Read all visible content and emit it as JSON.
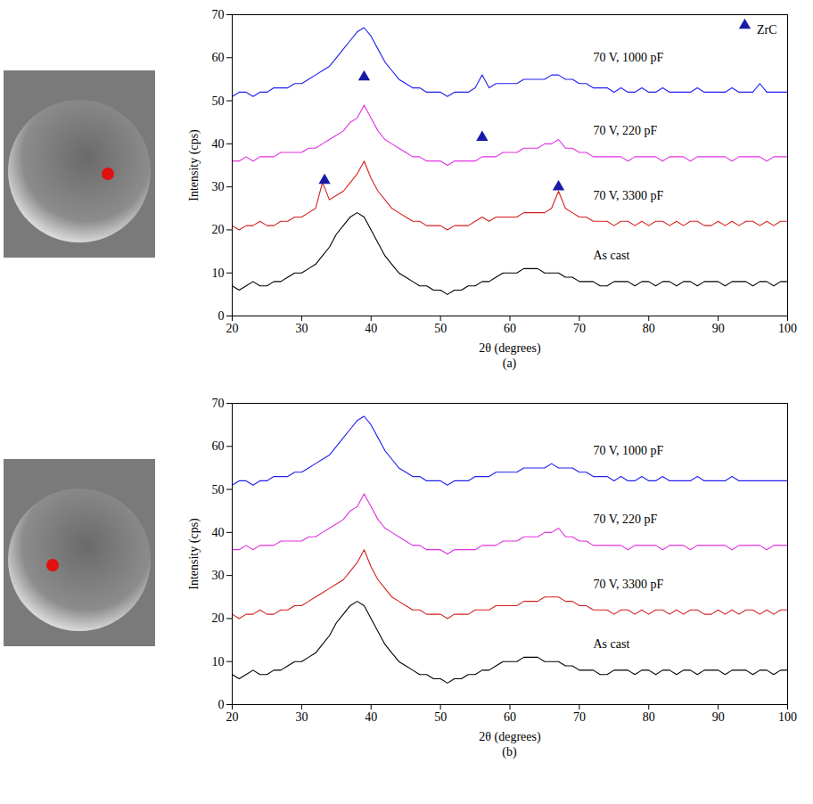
{
  "chart_data": [
    {
      "type": "line",
      "title": "(a)",
      "x_label": "2θ (degrees)",
      "y_label": "Intensity (cps)",
      "xlim": [
        20,
        100
      ],
      "ylim": [
        0,
        70
      ],
      "xticks": [
        20,
        30,
        40,
        50,
        60,
        70,
        80,
        90,
        100
      ],
      "yticks": [
        0,
        10,
        20,
        30,
        40,
        50,
        60,
        70
      ],
      "grid": false,
      "legend": "upper right",
      "x": [
        20,
        21,
        22,
        23,
        24,
        25,
        26,
        27,
        28,
        29,
        30,
        31,
        32,
        33,
        34,
        35,
        36,
        37,
        38,
        39,
        40,
        41,
        42,
        43,
        44,
        45,
        46,
        47,
        48,
        49,
        50,
        51,
        52,
        53,
        54,
        55,
        56,
        57,
        58,
        59,
        60,
        61,
        62,
        63,
        64,
        65,
        66,
        67,
        68,
        69,
        70,
        71,
        72,
        73,
        74,
        75,
        76,
        77,
        78,
        79,
        80,
        81,
        82,
        83,
        84,
        85,
        86,
        87,
        88,
        89,
        90,
        91,
        92,
        93,
        94,
        95,
        96,
        97,
        98,
        99,
        100
      ],
      "series": [
        {
          "name": "70 V, 1000 pF",
          "color": "#2020ee",
          "values": [
            51,
            52,
            52,
            51,
            52,
            52,
            53,
            53,
            53,
            54,
            54,
            55,
            56,
            57,
            58,
            60,
            62,
            64,
            66,
            67,
            65,
            62,
            59,
            57,
            55,
            54,
            53,
            53,
            52,
            52,
            52,
            51,
            52,
            52,
            52,
            53,
            56,
            53,
            54,
            54,
            54,
            54,
            55,
            55,
            55,
            55,
            56,
            56,
            55,
            55,
            54,
            54,
            53,
            53,
            53,
            52,
            53,
            52,
            52,
            53,
            52,
            52,
            53,
            52,
            52,
            52,
            52,
            53,
            52,
            52,
            52,
            52,
            53,
            52,
            52,
            52,
            54,
            52,
            52,
            52,
            52
          ]
        },
        {
          "name": "70 V, 220 pF",
          "color": "#e030e0",
          "values": [
            36,
            36,
            37,
            36,
            37,
            37,
            37,
            38,
            38,
            38,
            38,
            39,
            39,
            40,
            41,
            42,
            43,
            45,
            46,
            49,
            46,
            43,
            41,
            40,
            39,
            38,
            37,
            37,
            36,
            36,
            36,
            35,
            36,
            36,
            36,
            36,
            37,
            37,
            37,
            38,
            38,
            38,
            39,
            39,
            39,
            40,
            40,
            41,
            39,
            39,
            38,
            38,
            37,
            37,
            37,
            37,
            37,
            36,
            37,
            37,
            37,
            37,
            36,
            37,
            37,
            37,
            36,
            37,
            37,
            37,
            37,
            37,
            36,
            37,
            37,
            37,
            37,
            36,
            37,
            37,
            37
          ]
        },
        {
          "name": "70 V, 3300 pF",
          "color": "#d42020",
          "values": [
            21,
            20,
            21,
            21,
            22,
            21,
            21,
            22,
            22,
            23,
            23,
            24,
            25,
            31,
            27,
            28,
            29,
            31,
            33,
            36,
            32,
            29,
            27,
            25,
            24,
            23,
            22,
            22,
            21,
            21,
            21,
            20,
            21,
            21,
            21,
            22,
            23,
            22,
            23,
            23,
            23,
            23,
            24,
            24,
            24,
            24,
            25,
            29,
            25,
            24,
            23,
            23,
            22,
            22,
            22,
            21,
            22,
            22,
            21,
            22,
            21,
            22,
            22,
            21,
            22,
            21,
            22,
            22,
            21,
            21,
            22,
            21,
            22,
            21,
            22,
            22,
            21,
            22,
            21,
            22,
            22
          ]
        },
        {
          "name": "As cast",
          "color": "#000000",
          "values": [
            7,
            6,
            7,
            8,
            7,
            7,
            8,
            8,
            9,
            10,
            10,
            11,
            12,
            14,
            16,
            19,
            21,
            23,
            24,
            23,
            20,
            17,
            14,
            12,
            10,
            9,
            8,
            7,
            7,
            6,
            6,
            5,
            6,
            6,
            7,
            7,
            8,
            8,
            9,
            10,
            10,
            10,
            11,
            11,
            11,
            10,
            10,
            10,
            9,
            9,
            8,
            8,
            8,
            7,
            7,
            8,
            8,
            8,
            7,
            8,
            8,
            7,
            8,
            8,
            7,
            8,
            8,
            7,
            8,
            8,
            8,
            7,
            8,
            8,
            8,
            7,
            8,
            8,
            7,
            8,
            8
          ]
        }
      ],
      "markers": {
        "name": "ZrC",
        "color": "#1a1aa8",
        "marker": "triangle",
        "x": [
          39,
          56,
          33.3,
          67
        ],
        "y": [
          55.5,
          41.5,
          31.5,
          30
        ]
      }
    },
    {
      "type": "line",
      "title": "(b)",
      "x_label": "2θ (degrees)",
      "y_label": "Intensity (cps)",
      "xlim": [
        20,
        100
      ],
      "ylim": [
        0,
        70
      ],
      "xticks": [
        20,
        30,
        40,
        50,
        60,
        70,
        80,
        90,
        100
      ],
      "yticks": [
        0,
        10,
        20,
        30,
        40,
        50,
        60,
        70
      ],
      "grid": false,
      "x": [
        20,
        21,
        22,
        23,
        24,
        25,
        26,
        27,
        28,
        29,
        30,
        31,
        32,
        33,
        34,
        35,
        36,
        37,
        38,
        39,
        40,
        41,
        42,
        43,
        44,
        45,
        46,
        47,
        48,
        49,
        50,
        51,
        52,
        53,
        54,
        55,
        56,
        57,
        58,
        59,
        60,
        61,
        62,
        63,
        64,
        65,
        66,
        67,
        68,
        69,
        70,
        71,
        72,
        73,
        74,
        75,
        76,
        77,
        78,
        79,
        80,
        81,
        82,
        83,
        84,
        85,
        86,
        87,
        88,
        89,
        90,
        91,
        92,
        93,
        94,
        95,
        96,
        97,
        98,
        99,
        100
      ],
      "series": [
        {
          "name": "70 V, 1000 pF",
          "color": "#2020ee",
          "values": [
            51,
            52,
            52,
            51,
            52,
            52,
            53,
            53,
            53,
            54,
            54,
            55,
            56,
            57,
            58,
            60,
            62,
            64,
            66,
            67,
            65,
            62,
            59,
            57,
            55,
            54,
            53,
            53,
            52,
            52,
            52,
            51,
            52,
            52,
            52,
            53,
            53,
            53,
            54,
            54,
            54,
            54,
            55,
            55,
            55,
            55,
            56,
            55,
            55,
            55,
            54,
            54,
            53,
            53,
            53,
            52,
            53,
            52,
            52,
            53,
            52,
            52,
            53,
            52,
            52,
            52,
            52,
            53,
            52,
            52,
            52,
            52,
            53,
            52,
            52,
            52,
            52,
            52,
            52,
            52,
            52
          ]
        },
        {
          "name": "70 V, 220 pF",
          "color": "#e030e0",
          "values": [
            36,
            36,
            37,
            36,
            37,
            37,
            37,
            38,
            38,
            38,
            38,
            39,
            39,
            40,
            41,
            42,
            43,
            45,
            46,
            49,
            46,
            43,
            41,
            40,
            39,
            38,
            37,
            37,
            36,
            36,
            36,
            35,
            36,
            36,
            36,
            36,
            37,
            37,
            37,
            38,
            38,
            38,
            39,
            39,
            39,
            40,
            40,
            41,
            39,
            39,
            38,
            38,
            37,
            37,
            37,
            37,
            37,
            36,
            37,
            37,
            37,
            37,
            36,
            37,
            37,
            37,
            36,
            37,
            37,
            37,
            37,
            37,
            36,
            37,
            37,
            37,
            37,
            36,
            37,
            37,
            37
          ]
        },
        {
          "name": "70 V, 3300 pF",
          "color": "#d42020",
          "values": [
            21,
            20,
            21,
            21,
            22,
            21,
            21,
            22,
            22,
            23,
            23,
            24,
            25,
            26,
            27,
            28,
            29,
            31,
            33,
            36,
            32,
            29,
            27,
            25,
            24,
            23,
            22,
            22,
            21,
            21,
            21,
            20,
            21,
            21,
            21,
            22,
            22,
            22,
            23,
            23,
            23,
            23,
            24,
            24,
            24,
            25,
            25,
            25,
            24,
            24,
            23,
            23,
            22,
            22,
            22,
            21,
            22,
            22,
            21,
            22,
            21,
            22,
            22,
            21,
            22,
            21,
            22,
            22,
            21,
            21,
            22,
            21,
            22,
            21,
            22,
            22,
            21,
            22,
            21,
            22,
            22
          ]
        },
        {
          "name": "As cast",
          "color": "#000000",
          "values": [
            7,
            6,
            7,
            8,
            7,
            7,
            8,
            8,
            9,
            10,
            10,
            11,
            12,
            14,
            16,
            19,
            21,
            23,
            24,
            23,
            20,
            17,
            14,
            12,
            10,
            9,
            8,
            7,
            7,
            6,
            6,
            5,
            6,
            6,
            7,
            7,
            8,
            8,
            9,
            10,
            10,
            10,
            11,
            11,
            11,
            10,
            10,
            10,
            9,
            9,
            8,
            8,
            8,
            7,
            7,
            8,
            8,
            8,
            7,
            8,
            8,
            7,
            8,
            8,
            7,
            8,
            8,
            7,
            8,
            8,
            8,
            7,
            8,
            8,
            8,
            7,
            8,
            8,
            7,
            8,
            8
          ]
        }
      ]
    }
  ]
}
